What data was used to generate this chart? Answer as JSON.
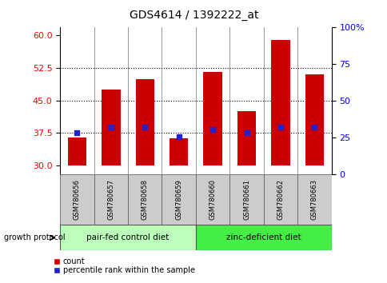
{
  "title": "GDS4614 / 1392222_at",
  "samples": [
    "GSM780656",
    "GSM780657",
    "GSM780658",
    "GSM780659",
    "GSM780660",
    "GSM780661",
    "GSM780662",
    "GSM780663"
  ],
  "bar_tops": [
    36.5,
    47.5,
    50.0,
    36.2,
    51.5,
    42.5,
    59.0,
    51.0
  ],
  "bar_bottom": 30,
  "percentile_values": [
    37.5,
    38.8,
    38.8,
    36.7,
    38.2,
    37.5,
    38.8,
    38.8
  ],
  "ylim_left": [
    28,
    62
  ],
  "yticks_left": [
    30,
    37.5,
    45,
    52.5,
    60
  ],
  "ylim_right": [
    0,
    100
  ],
  "yticks_right": [
    0,
    25,
    50,
    75,
    100
  ],
  "bar_color": "#cc0000",
  "dot_color": "#2222cc",
  "group1_label": "pair-fed control diet",
  "group2_label": "zinc-deficient diet",
  "group1_indices": [
    0,
    1,
    2,
    3
  ],
  "group2_indices": [
    4,
    5,
    6,
    7
  ],
  "group1_color": "#bbffbb",
  "group2_color": "#44ee44",
  "protocol_label": "growth protocol",
  "legend_count_label": "count",
  "legend_percentile_label": "percentile rank within the sample",
  "bg_color": "#ffffff",
  "label_area_color": "#cccccc",
  "bar_width": 0.55,
  "title_fontsize": 10,
  "tick_fontsize": 8,
  "sample_fontsize": 6,
  "group_fontsize": 7.5,
  "legend_fontsize": 7,
  "protocol_fontsize": 7
}
